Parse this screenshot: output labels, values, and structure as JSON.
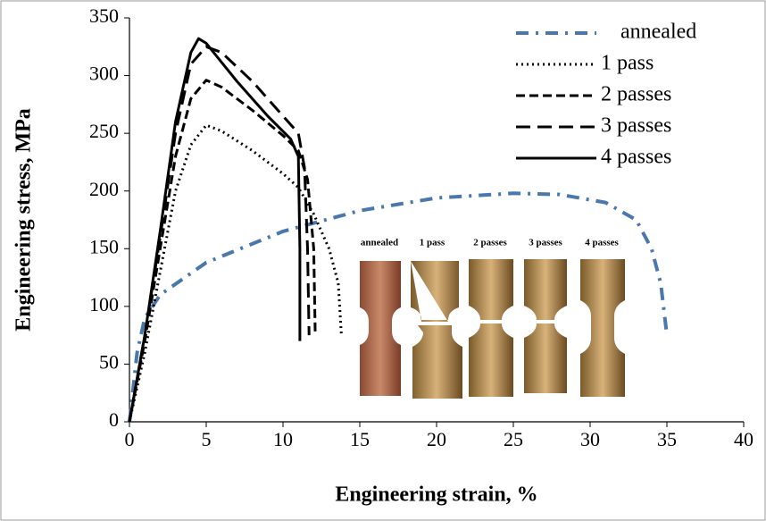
{
  "chart_data": {
    "type": "line",
    "xlabel": "Engineering strain, %",
    "ylabel": "Engineering stress, MPa",
    "xlim": [
      0,
      40
    ],
    "xticks": [
      0,
      5,
      10,
      15,
      20,
      25,
      30,
      35,
      40
    ],
    "ylim": [
      0,
      350
    ],
    "yticks": [
      0,
      50,
      100,
      150,
      200,
      250,
      300,
      350
    ],
    "legend": "upper right",
    "series": [
      {
        "name": "annealed",
        "color": "#4a78ad",
        "style": "dashdot",
        "x": [
          0,
          0.5,
          1,
          2,
          5,
          10,
          15,
          20,
          25,
          28,
          31,
          33,
          34,
          34.6,
          35
        ],
        "values": [
          0,
          60,
          90,
          110,
          138,
          165,
          183,
          194,
          198,
          197,
          190,
          175,
          150,
          120,
          75
        ]
      },
      {
        "name": "1 pass",
        "color": "#000000",
        "style": "dotted",
        "x": [
          0,
          1,
          2,
          3,
          4,
          5,
          6,
          8,
          10,
          11,
          12,
          13,
          13.6,
          13.8
        ],
        "values": [
          0,
          60,
          130,
          200,
          240,
          257,
          252,
          235,
          215,
          203,
          180,
          150,
          120,
          75
        ]
      },
      {
        "name": "2 passes",
        "color": "#000000",
        "style": "dashed",
        "x": [
          0,
          1,
          2,
          3,
          4,
          5,
          6,
          8,
          10,
          11,
          11.6,
          12,
          12.1
        ],
        "values": [
          0,
          70,
          150,
          230,
          280,
          296,
          290,
          270,
          248,
          235,
          210,
          150,
          75
        ]
      },
      {
        "name": "3 passes",
        "color": "#000000",
        "style": "longdash",
        "x": [
          0,
          1,
          2,
          3,
          4,
          5,
          6,
          8,
          10,
          11,
          11.4,
          11.6,
          11.7
        ],
        "values": [
          0,
          75,
          160,
          250,
          310,
          325,
          320,
          295,
          265,
          250,
          220,
          150,
          75
        ]
      },
      {
        "name": "4 passes",
        "color": "#000000",
        "style": "solid",
        "x": [
          0,
          1,
          2,
          3,
          4,
          4.5,
          5,
          7,
          9,
          10.5,
          11,
          11.1,
          11.1
        ],
        "values": [
          0,
          75,
          165,
          260,
          320,
          332,
          328,
          295,
          265,
          245,
          230,
          150,
          70
        ]
      }
    ],
    "inset_labels": [
      "annealed",
      "1 pass",
      "2 passes",
      "3 passes",
      "4 passes"
    ]
  }
}
